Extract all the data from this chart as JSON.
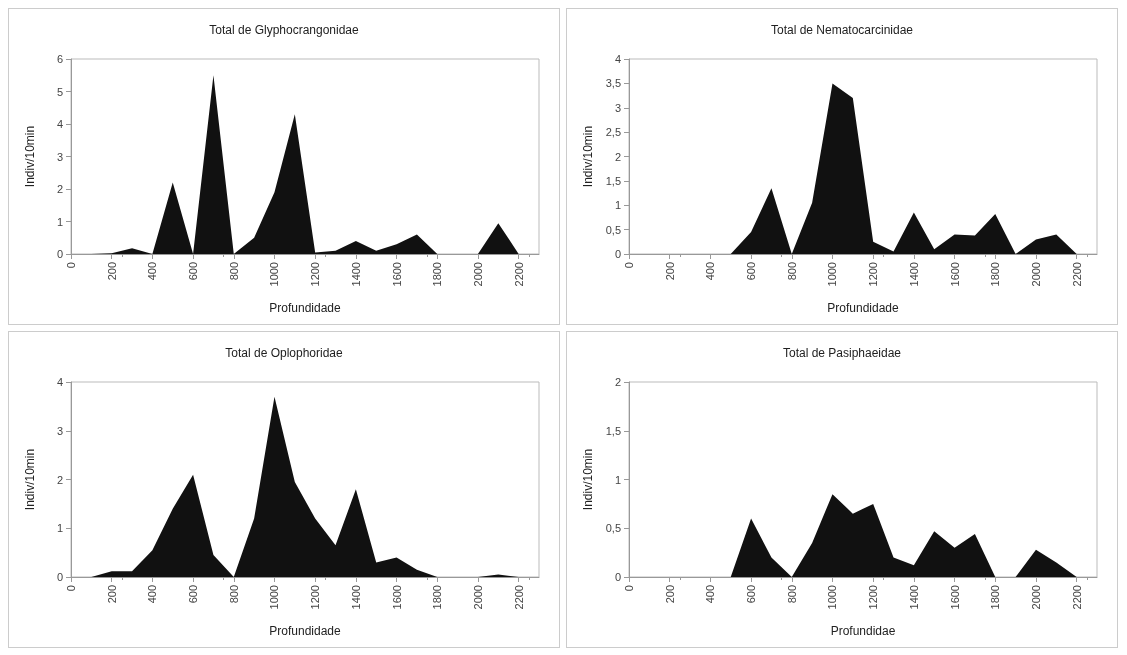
{
  "chart_data": [
    {
      "type": "area",
      "title": "Total de Glyphocrangonidae",
      "xlabel": "Profundidade",
      "ylabel": "Indiv/10min",
      "color": "#111111",
      "grid": false,
      "xlim": [
        0,
        2300
      ],
      "xticks": [
        0,
        200,
        400,
        600,
        800,
        1000,
        1200,
        1400,
        1600,
        1800,
        2000,
        2200
      ],
      "ylim": [
        0,
        6
      ],
      "yticks": [
        0,
        1,
        2,
        3,
        4,
        5,
        6
      ],
      "x": [
        0,
        100,
        200,
        300,
        400,
        500,
        600,
        700,
        800,
        900,
        1000,
        1100,
        1200,
        1300,
        1400,
        1500,
        1600,
        1700,
        1800,
        1900,
        2000,
        2100,
        2200
      ],
      "values": [
        0,
        0,
        0.02,
        0.18,
        0,
        2.2,
        0,
        5.5,
        0,
        0.5,
        1.9,
        4.3,
        0.05,
        0.1,
        0.4,
        0.1,
        0.3,
        0.6,
        0,
        0,
        0,
        0.95,
        0
      ]
    },
    {
      "type": "area",
      "title": "Total de Nematocarcinidae",
      "xlabel": "Profundidade",
      "ylabel": "Indiv/10min",
      "color": "#111111",
      "grid": false,
      "xlim": [
        0,
        2300
      ],
      "xticks": [
        0,
        200,
        400,
        600,
        800,
        1000,
        1200,
        1400,
        1600,
        1800,
        2000,
        2200
      ],
      "ylim": [
        0,
        4
      ],
      "yticks": [
        0,
        {
          "value": 0.5,
          "label": "0,5"
        },
        1,
        {
          "value": 1.5,
          "label": "1,5"
        },
        2,
        {
          "value": 2.5,
          "label": "2,5"
        },
        3,
        {
          "value": 3.5,
          "label": "3,5"
        },
        4
      ],
      "x": [
        0,
        100,
        200,
        300,
        400,
        500,
        600,
        700,
        800,
        900,
        1000,
        1100,
        1200,
        1300,
        1400,
        1500,
        1600,
        1700,
        1800,
        1900,
        2000,
        2100,
        2200
      ],
      "values": [
        0,
        0,
        0,
        0,
        0,
        0,
        0.45,
        1.35,
        0,
        1.05,
        3.5,
        3.2,
        0.25,
        0.05,
        0.85,
        0.1,
        0.4,
        0.38,
        0.82,
        0,
        0.3,
        0.4,
        0
      ]
    },
    {
      "type": "area",
      "title": "Total de Oplophoridae",
      "xlabel": "Profundidade",
      "ylabel": "Indiv/10min",
      "color": "#111111",
      "grid": false,
      "xlim": [
        0,
        2300
      ],
      "xticks": [
        0,
        200,
        400,
        600,
        800,
        1000,
        1200,
        1400,
        1600,
        1800,
        2000,
        2200
      ],
      "ylim": [
        0,
        4
      ],
      "yticks": [
        0,
        1,
        2,
        3,
        4
      ],
      "x": [
        0,
        100,
        200,
        300,
        400,
        500,
        600,
        700,
        800,
        900,
        1000,
        1100,
        1200,
        1300,
        1400,
        1500,
        1600,
        1700,
        1800,
        1900,
        2000,
        2100,
        2200
      ],
      "values": [
        0,
        0,
        0.12,
        0.12,
        0.55,
        1.4,
        2.1,
        0.45,
        0,
        1.2,
        3.7,
        1.95,
        1.2,
        0.65,
        1.8,
        0.3,
        0.4,
        0.15,
        0,
        0,
        0,
        0.05,
        0
      ]
    },
    {
      "type": "area",
      "title": "Total de Pasiphaeidae",
      "xlabel": "Profundidae",
      "ylabel": "Indiv/10min",
      "color": "#111111",
      "grid": false,
      "xlim": [
        0,
        2300
      ],
      "xticks": [
        0,
        200,
        400,
        600,
        800,
        1000,
        1200,
        1400,
        1600,
        1800,
        2000,
        2200
      ],
      "ylim": [
        0,
        2
      ],
      "yticks": [
        0,
        {
          "value": 0.5,
          "label": "0,5"
        },
        1,
        {
          "value": 1.5,
          "label": "1,5"
        },
        2
      ],
      "x": [
        0,
        100,
        200,
        300,
        400,
        500,
        600,
        700,
        800,
        900,
        1000,
        1100,
        1200,
        1300,
        1400,
        1500,
        1600,
        1700,
        1800,
        1900,
        2000,
        2100,
        2200
      ],
      "values": [
        0,
        0,
        0,
        0,
        0,
        0,
        0.6,
        0.2,
        0,
        0.35,
        0.85,
        0.65,
        0.75,
        0.2,
        0.12,
        0.47,
        0.3,
        0.44,
        0,
        0,
        0.28,
        0.15,
        0
      ]
    }
  ]
}
